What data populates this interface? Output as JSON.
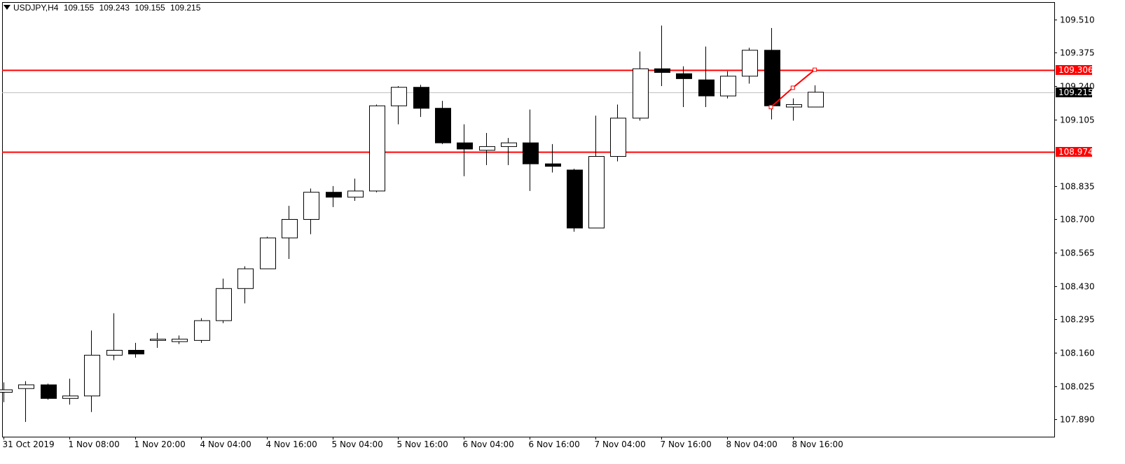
{
  "header": {
    "symbol": "USDJPY,H4",
    "open": "109.155",
    "high": "109.243",
    "low": "109.155",
    "close": "109.215"
  },
  "colors": {
    "bull_fill": "#ffffff",
    "bear_fill": "#000000",
    "candle_stroke": "#000000",
    "hline": "#ff0000",
    "current_line": "#c0c0c0",
    "price_tag_bg": "#ff0000",
    "current_tag_bg": "#000000"
  },
  "chart_data": {
    "type": "candlestick",
    "timeframe": "H4",
    "ylim": [
      107.82,
      109.58
    ],
    "y_ticks": [
      "109.510",
      "109.375",
      "109.240",
      "109.105",
      "108.835",
      "108.700",
      "108.565",
      "108.430",
      "108.295",
      "108.160",
      "108.025",
      "107.890"
    ],
    "x_labels": [
      {
        "index": 0,
        "label": "31 Oct 2019"
      },
      {
        "index": 3,
        "label": "1 Nov 08:00"
      },
      {
        "index": 6,
        "label": "1 Nov 20:00"
      },
      {
        "index": 9,
        "label": "4 Nov 04:00"
      },
      {
        "index": 12,
        "label": "4 Nov 16:00"
      },
      {
        "index": 15,
        "label": "5 Nov 04:00"
      },
      {
        "index": 18,
        "label": "5 Nov 16:00"
      },
      {
        "index": 21,
        "label": "6 Nov 04:00"
      },
      {
        "index": 24,
        "label": "6 Nov 16:00"
      },
      {
        "index": 27,
        "label": "7 Nov 04:00"
      },
      {
        "index": 30,
        "label": "7 Nov 16:00"
      },
      {
        "index": 33,
        "label": "8 Nov 04:00"
      },
      {
        "index": 36,
        "label": "8 Nov 16:00"
      }
    ],
    "candles": [
      {
        "o": 108.0,
        "h": 108.04,
        "l": 107.96,
        "c": 108.01
      },
      {
        "o": 108.015,
        "h": 108.045,
        "l": 107.88,
        "c": 108.03
      },
      {
        "o": 108.03,
        "h": 108.035,
        "l": 107.97,
        "c": 107.975
      },
      {
        "o": 107.975,
        "h": 108.055,
        "l": 107.95,
        "c": 107.985
      },
      {
        "o": 107.985,
        "h": 108.25,
        "l": 107.92,
        "c": 108.15
      },
      {
        "o": 108.15,
        "h": 108.32,
        "l": 108.13,
        "c": 108.17
      },
      {
        "o": 108.17,
        "h": 108.2,
        "l": 108.14,
        "c": 108.155
      },
      {
        "o": 108.21,
        "h": 108.24,
        "l": 108.18,
        "c": 108.215
      },
      {
        "o": 108.205,
        "h": 108.23,
        "l": 108.195,
        "c": 108.215
      },
      {
        "o": 108.21,
        "h": 108.3,
        "l": 108.2,
        "c": 108.29
      },
      {
        "o": 108.29,
        "h": 108.46,
        "l": 108.28,
        "c": 108.42
      },
      {
        "o": 108.42,
        "h": 108.51,
        "l": 108.36,
        "c": 108.5
      },
      {
        "o": 108.5,
        "h": 108.63,
        "l": 108.5,
        "c": 108.625
      },
      {
        "o": 108.625,
        "h": 108.755,
        "l": 108.54,
        "c": 108.7
      },
      {
        "o": 108.7,
        "h": 108.825,
        "l": 108.64,
        "c": 108.81
      },
      {
        "o": 108.81,
        "h": 108.835,
        "l": 108.75,
        "c": 108.79
      },
      {
        "o": 108.79,
        "h": 108.865,
        "l": 108.775,
        "c": 108.815
      },
      {
        "o": 108.815,
        "h": 109.165,
        "l": 108.81,
        "c": 109.16
      },
      {
        "o": 109.16,
        "h": 109.24,
        "l": 109.085,
        "c": 109.235
      },
      {
        "o": 109.235,
        "h": 109.245,
        "l": 109.115,
        "c": 109.15
      },
      {
        "o": 109.15,
        "h": 109.18,
        "l": 109.005,
        "c": 109.01
      },
      {
        "o": 109.01,
        "h": 109.085,
        "l": 108.875,
        "c": 108.985
      },
      {
        "o": 108.98,
        "h": 109.05,
        "l": 108.92,
        "c": 108.995
      },
      {
        "o": 108.995,
        "h": 109.03,
        "l": 108.92,
        "c": 109.01
      },
      {
        "o": 109.01,
        "h": 109.145,
        "l": 108.815,
        "c": 108.925
      },
      {
        "o": 108.925,
        "h": 109.005,
        "l": 108.89,
        "c": 108.915
      },
      {
        "o": 108.9,
        "h": 108.905,
        "l": 108.65,
        "c": 108.665
      },
      {
        "o": 108.665,
        "h": 109.12,
        "l": 108.665,
        "c": 108.955
      },
      {
        "o": 108.955,
        "h": 109.165,
        "l": 108.935,
        "c": 109.11
      },
      {
        "o": 109.11,
        "h": 109.38,
        "l": 109.1,
        "c": 109.31
      },
      {
        "o": 109.31,
        "h": 109.485,
        "l": 109.24,
        "c": 109.295
      },
      {
        "o": 109.29,
        "h": 109.32,
        "l": 109.155,
        "c": 109.27
      },
      {
        "o": 109.265,
        "h": 109.4,
        "l": 109.155,
        "c": 109.2
      },
      {
        "o": 109.2,
        "h": 109.3,
        "l": 109.19,
        "c": 109.28
      },
      {
        "o": 109.28,
        "h": 109.395,
        "l": 109.25,
        "c": 109.385
      },
      {
        "o": 109.385,
        "h": 109.475,
        "l": 109.105,
        "c": 109.16
      },
      {
        "o": 109.155,
        "h": 109.19,
        "l": 109.1,
        "c": 109.165
      },
      {
        "o": 109.155,
        "h": 109.243,
        "l": 109.155,
        "c": 109.215
      }
    ],
    "horizontal_lines": [
      {
        "price": 109.306,
        "label": "109.306"
      },
      {
        "price": 108.974,
        "label": "108.974"
      }
    ],
    "current_price": {
      "price": 109.215,
      "label": "109.215"
    },
    "trendline": [
      {
        "index": 35,
        "price": 109.155
      },
      {
        "index": 36,
        "price": 109.233
      },
      {
        "index": 37,
        "price": 109.306
      }
    ]
  }
}
